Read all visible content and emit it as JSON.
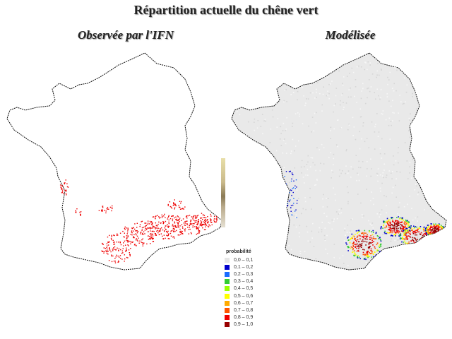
{
  "title": "Répartition actuelle du chêne vert",
  "panels": {
    "left": {
      "subtitle": "Observée par l'IFN"
    },
    "right": {
      "subtitle": "Modélisée"
    }
  },
  "legend": {
    "title": "probabilité",
    "items": [
      {
        "label": "0,0 – 0,1",
        "color": "#e6e6e6"
      },
      {
        "label": "0,1 – 0,2",
        "color": "#0000cc"
      },
      {
        "label": "0,2 – 0,3",
        "color": "#1a6cff"
      },
      {
        "label": "0,3 – 0,4",
        "color": "#33cc33"
      },
      {
        "label": "0,4 – 0,5",
        "color": "#99ff00"
      },
      {
        "label": "0,5 – 0,6",
        "color": "#ffff00"
      },
      {
        "label": "0,6 – 0,7",
        "color": "#ffaa00"
      },
      {
        "label": "0,7 – 0,8",
        "color": "#ff5500"
      },
      {
        "label": "0,8 – 0,9",
        "color": "#ee0000"
      },
      {
        "label": "0,9 – 1,0",
        "color": "#990000"
      }
    ]
  },
  "colors": {
    "outline": "#111111",
    "observed": "#ee0000",
    "model_background": "#e9e9e9"
  }
}
